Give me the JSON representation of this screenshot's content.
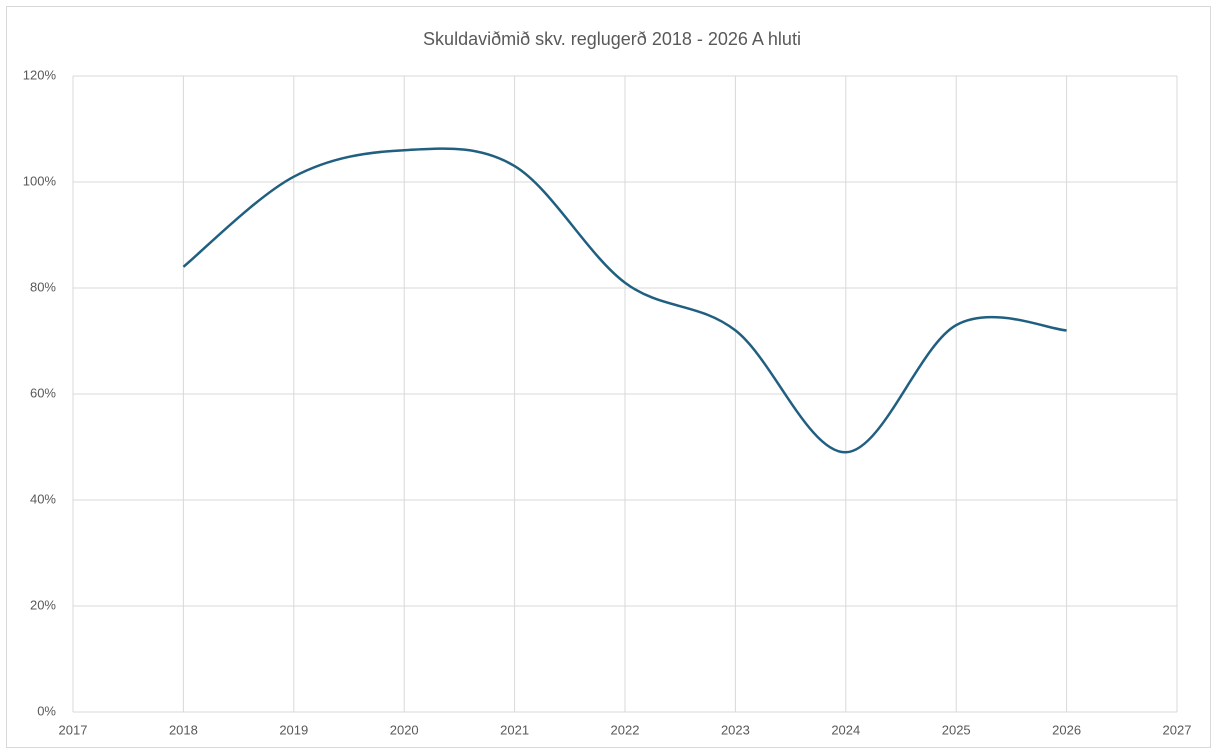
{
  "chart_data": {
    "type": "line",
    "title": "Skuldaviðmið skv. reglugerð 2018 - 2026 A hluti",
    "x": [
      2018,
      2019,
      2020,
      2021,
      2022,
      2023,
      2024,
      2025,
      2026
    ],
    "values": [
      84,
      101,
      106,
      103,
      81,
      72,
      49,
      73,
      72
    ],
    "color": "#215f80",
    "smooth": true,
    "xlim": [
      2017,
      2027
    ],
    "xticks": [
      2017,
      2018,
      2019,
      2020,
      2021,
      2022,
      2023,
      2024,
      2025,
      2026,
      2027
    ],
    "ylim": [
      0,
      120
    ],
    "yticks": [
      {
        "value": 0,
        "label": "0%"
      },
      {
        "value": 20,
        "label": "20%"
      },
      {
        "value": 40,
        "label": "40%"
      },
      {
        "value": 60,
        "label": "60%"
      },
      {
        "value": 80,
        "label": "80%"
      },
      {
        "value": 100,
        "label": "100%"
      },
      {
        "value": 120,
        "label": "120%"
      }
    ],
    "grid": true
  }
}
